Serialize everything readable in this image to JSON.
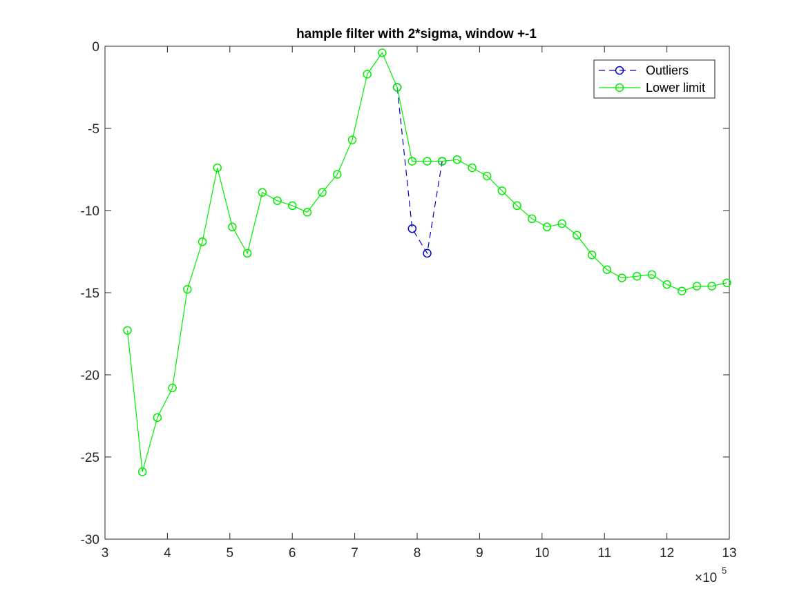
{
  "chart_data": {
    "type": "line",
    "title": "hample filter with 2*sigma, window +-1",
    "xlabel": "",
    "ylabel": "",
    "xlim": [
      300000,
      1300000
    ],
    "ylim": [
      -30,
      0
    ],
    "x_ticks": [
      300000,
      400000,
      500000,
      600000,
      700000,
      800000,
      900000,
      1000000,
      1100000,
      1200000,
      1300000
    ],
    "x_tick_labels": [
      "3",
      "4",
      "5",
      "6",
      "7",
      "8",
      "9",
      "10",
      "11",
      "12",
      "13"
    ],
    "x_exponent_base": "×10",
    "x_exponent_power": "5",
    "y_ticks": [
      0,
      -5,
      -10,
      -15,
      -20,
      -25,
      -30
    ],
    "y_tick_labels": [
      "0",
      "-5",
      "-10",
      "-15",
      "-20",
      "-25",
      "-30"
    ],
    "grid": false,
    "legend_position": "top-right",
    "series": [
      {
        "name": "Outliers",
        "color": "#0000cc",
        "line_style": "dashed",
        "marker": "circle",
        "points": [
          [
            768000,
            -2.5
          ],
          [
            792000,
            -11.1
          ],
          [
            816000,
            -12.6
          ],
          [
            840000,
            -7.0
          ]
        ]
      },
      {
        "name": "Lower limit",
        "color": "#00ee00",
        "line_style": "solid",
        "marker": "circle",
        "points": [
          [
            336000,
            -17.3
          ],
          [
            360000,
            -25.9
          ],
          [
            384000,
            -22.6
          ],
          [
            408000,
            -20.8
          ],
          [
            432000,
            -14.8
          ],
          [
            456000,
            -11.9
          ],
          [
            480000,
            -7.4
          ],
          [
            504000,
            -11.0
          ],
          [
            528000,
            -12.6
          ],
          [
            552000,
            -8.9
          ],
          [
            576000,
            -9.4
          ],
          [
            600000,
            -9.7
          ],
          [
            624000,
            -10.1
          ],
          [
            648000,
            -8.9
          ],
          [
            672000,
            -7.8
          ],
          [
            696000,
            -5.7
          ],
          [
            720000,
            -1.7
          ],
          [
            744000,
            -0.4
          ],
          [
            768000,
            -2.5
          ],
          [
            792000,
            -7.0
          ],
          [
            816000,
            -7.0
          ],
          [
            840000,
            -7.0
          ],
          [
            864000,
            -6.9
          ],
          [
            888000,
            -7.4
          ],
          [
            912000,
            -7.9
          ],
          [
            936000,
            -8.8
          ],
          [
            960000,
            -9.7
          ],
          [
            984000,
            -10.5
          ],
          [
            1008000,
            -11.0
          ],
          [
            1032000,
            -10.8
          ],
          [
            1056000,
            -11.5
          ],
          [
            1080000,
            -12.7
          ],
          [
            1104000,
            -13.6
          ],
          [
            1128000,
            -14.1
          ],
          [
            1152000,
            -14.0
          ],
          [
            1176000,
            -13.9
          ],
          [
            1200000,
            -14.5
          ],
          [
            1224000,
            -14.9
          ],
          [
            1248000,
            -14.6
          ],
          [
            1272000,
            -14.6
          ],
          [
            1296000,
            -14.4
          ]
        ]
      }
    ]
  }
}
